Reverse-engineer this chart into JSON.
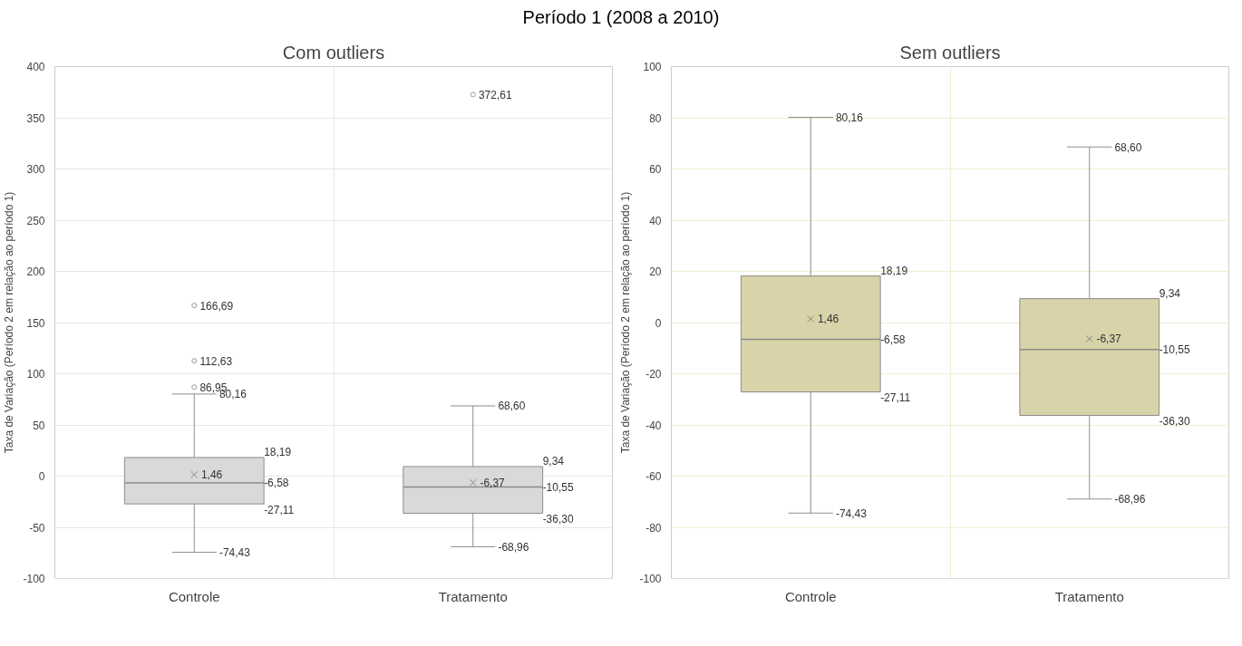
{
  "chart_data": [
    {
      "type": "box",
      "title": "Período 1 (2008 a 2010)",
      "subtitle": "Com outliers",
      "ylabel": "Taxa de Variação (Período 2 em relação ao período 1)",
      "categories": [
        "Controle",
        "Tratamento"
      ],
      "boxes": [
        {
          "low": -74.43,
          "q1": -27.11,
          "median": -6.58,
          "q3": 18.19,
          "high": 80.16,
          "mean": 1.46,
          "outliers": [
            86.95,
            112.63,
            166.69
          ]
        },
        {
          "low": -68.96,
          "q1": -36.3,
          "median": -10.55,
          "q3": 9.34,
          "high": 68.6,
          "mean": -6.37,
          "outliers": [
            372.61
          ]
        }
      ],
      "color": "#d9d9d9",
      "ylim": [
        -100,
        400
      ],
      "yticks": [
        -100,
        -50,
        0,
        50,
        100,
        150,
        200,
        250,
        300,
        350,
        400
      ],
      "grid": true,
      "data_labels": true,
      "annotations": [
        "80,16",
        "18,19",
        "1,46",
        "-6,58",
        "-27,11",
        "-74,43",
        "86,95",
        "112,63",
        "166,69",
        "68,60",
        "9,34",
        "-6,37",
        "-10,55",
        "-36,30",
        "-68,96",
        "372,61"
      ]
    },
    {
      "type": "box",
      "title": "Sem outliers",
      "ylabel": "Taxa de Variação (Período 2 em relação ao período 1)",
      "categories": [
        "Controle",
        "Tratamento"
      ],
      "boxes": [
        {
          "low": -74.43,
          "q1": -27.11,
          "median": -6.58,
          "q3": 18.19,
          "high": 80.16,
          "mean": 1.46
        },
        {
          "low": -68.96,
          "q1": -36.3,
          "median": -10.55,
          "q3": 9.34,
          "high": 68.6,
          "mean": -6.37
        }
      ],
      "color": "#d8d3a8",
      "ylim": [
        -100,
        100
      ],
      "yticks": [
        -100,
        -80,
        -60,
        -40,
        -20,
        0,
        20,
        40,
        60,
        80,
        100
      ],
      "grid": true,
      "data_labels": true,
      "annotations": [
        "80,16",
        "18,19",
        "1,46",
        "-6,58",
        "-27,11",
        "-74,43",
        "68,60",
        "9,34",
        "-6,37",
        "-10,55",
        "-36,30",
        "-68,96"
      ]
    }
  ]
}
